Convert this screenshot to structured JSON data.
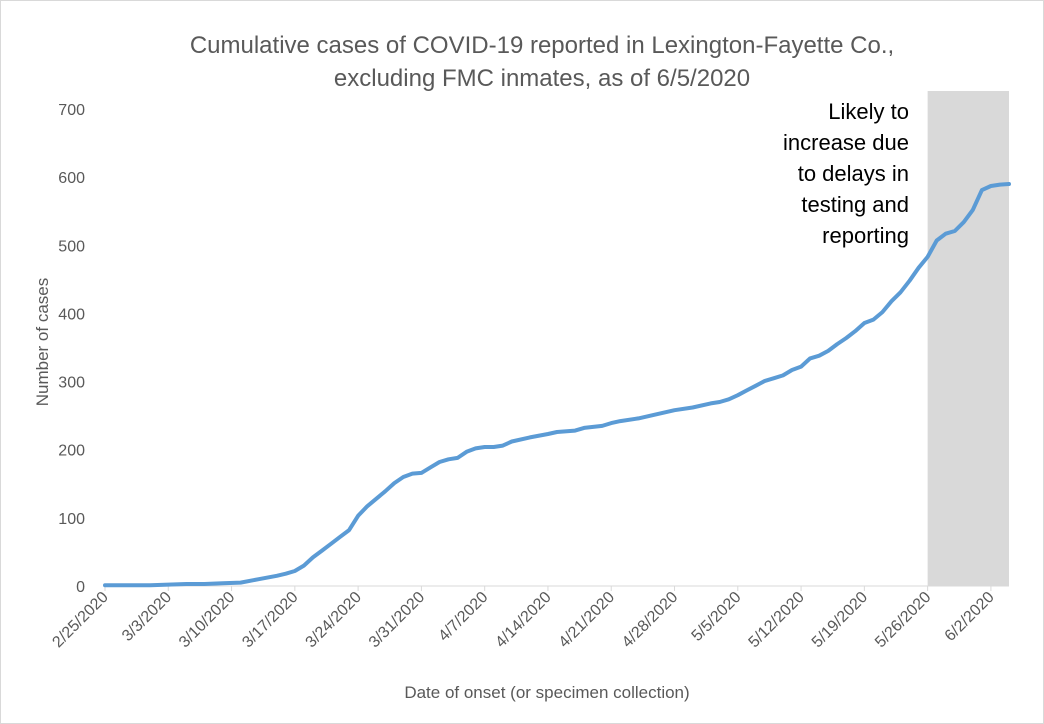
{
  "chart_data": {
    "type": "line",
    "title_lines": [
      "Cumulative cases of COVID-19 reported in Lexington-Fayette Co.,",
      "excluding FMC inmates, as of 6/5/2020"
    ],
    "xlabel": "Date of onset (or specimen collection)",
    "ylabel": "Number of cases",
    "ylim": [
      0,
      700
    ],
    "yticks": [
      0,
      100,
      200,
      300,
      400,
      500,
      600,
      700
    ],
    "x_range": [
      "2/25/2020",
      "6/4/2020"
    ],
    "xtick_labels": [
      "2/25/2020",
      "3/3/2020",
      "3/10/2020",
      "3/17/2020",
      "3/24/2020",
      "3/31/2020",
      "4/7/2020",
      "4/14/2020",
      "4/21/2020",
      "4/28/2020",
      "5/5/2020",
      "5/12/2020",
      "5/19/2020",
      "5/26/2020",
      "6/2/2020"
    ],
    "grid": false,
    "series": [
      {
        "color": "#5b9bd5",
        "x": [
          "2/25/2020",
          "2/27/2020",
          "3/1/2020",
          "3/3/2020",
          "3/5/2020",
          "3/7/2020",
          "3/9/2020",
          "3/11/2020",
          "3/13/2020",
          "3/15/2020",
          "3/16/2020",
          "3/17/2020",
          "3/18/2020",
          "3/19/2020",
          "3/20/2020",
          "3/21/2020",
          "3/22/2020",
          "3/23/2020",
          "3/24/2020",
          "3/25/2020",
          "3/26/2020",
          "3/27/2020",
          "3/28/2020",
          "3/29/2020",
          "3/30/2020",
          "3/31/2020",
          "4/1/2020",
          "4/2/2020",
          "4/3/2020",
          "4/4/2020",
          "4/5/2020",
          "4/6/2020",
          "4/7/2020",
          "4/8/2020",
          "4/9/2020",
          "4/10/2020",
          "4/12/2020",
          "4/14/2020",
          "4/15/2020",
          "4/17/2020",
          "4/18/2020",
          "4/20/2020",
          "4/21/2020",
          "4/22/2020",
          "4/24/2020",
          "4/26/2020",
          "4/28/2020",
          "4/30/2020",
          "5/2/2020",
          "5/3/2020",
          "5/4/2020",
          "5/5/2020",
          "5/6/2020",
          "5/7/2020",
          "5/8/2020",
          "5/9/2020",
          "5/10/2020",
          "5/11/2020",
          "5/12/2020",
          "5/13/2020",
          "5/14/2020",
          "5/15/2020",
          "5/16/2020",
          "5/17/2020",
          "5/18/2020",
          "5/19/2020",
          "5/20/2020",
          "5/21/2020",
          "5/22/2020",
          "5/23/2020",
          "5/24/2020",
          "5/25/2020",
          "5/26/2020",
          "5/27/2020",
          "5/28/2020",
          "5/29/2020",
          "5/30/2020",
          "5/31/2020",
          "6/1/2020",
          "6/2/2020",
          "6/3/2020",
          "6/4/2020"
        ],
        "values": [
          1,
          1,
          1,
          2,
          3,
          3,
          4,
          5,
          10,
          15,
          18,
          22,
          30,
          42,
          52,
          62,
          72,
          82,
          103,
          117,
          128,
          139,
          151,
          160,
          165,
          166,
          174,
          182,
          186,
          188,
          197,
          202,
          204,
          204,
          206,
          212,
          218,
          223,
          226,
          228,
          232,
          235,
          239,
          242,
          246,
          252,
          258,
          262,
          268,
          270,
          274,
          280,
          287,
          294,
          301,
          305,
          309,
          317,
          322,
          334,
          338,
          345,
          355,
          364,
          374,
          386,
          391,
          402,
          418,
          431,
          448,
          467,
          483,
          507,
          517,
          521,
          534,
          552,
          581,
          587,
          589,
          590
        ]
      }
    ],
    "shaded_region": {
      "start": "5/26/2020",
      "end": "6/4/2020",
      "color": "#d9d9d9",
      "annotation_lines": [
        "Likely to",
        "increase due",
        "to delays in",
        "testing and",
        "reporting"
      ]
    }
  }
}
